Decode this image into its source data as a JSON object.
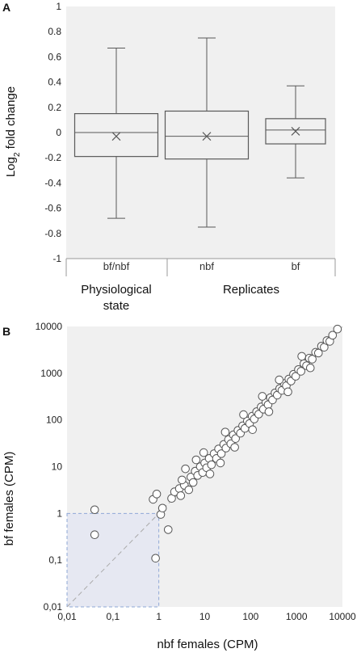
{
  "chart_data": [
    {
      "panel_label": "A",
      "type": "box",
      "ylabel": "Log₂ fold change",
      "ylabel_main": "Log",
      "ylabel_sub": "2",
      "ylabel_rest": " fold change",
      "ylim": [
        -1,
        1
      ],
      "yticks": [
        {
          "value": 1,
          "label": "1"
        },
        {
          "value": 0.8,
          "label": "0.8"
        },
        {
          "value": 0.6,
          "label": "0.6"
        },
        {
          "value": 0.4,
          "label": "0.4"
        },
        {
          "value": 0.2,
          "label": "0.2"
        },
        {
          "value": 0,
          "label": "0"
        },
        {
          "value": -0.2,
          "label": "-0.2"
        },
        {
          "value": -0.4,
          "label": "-0.4"
        },
        {
          "value": -0.6,
          "label": "-0.6"
        },
        {
          "value": -0.8,
          "label": "-0.8"
        },
        {
          "value": -1,
          "label": "-1"
        }
      ],
      "categories": [
        "bf/nbf",
        "nbf",
        "bf"
      ],
      "groups": [
        "Physiological state",
        "Replicates"
      ],
      "boxes": [
        {
          "category": "bf/nbf",
          "whisker_low": -0.68,
          "q1": -0.19,
          "median": 0.0,
          "q3": 0.15,
          "whisker_high": 0.67,
          "mean": -0.03
        },
        {
          "category": "nbf",
          "whisker_low": -0.75,
          "q1": -0.21,
          "median": -0.03,
          "q3": 0.17,
          "whisker_high": 0.75,
          "mean": -0.03
        },
        {
          "category": "bf",
          "whisker_low": -0.36,
          "q1": -0.09,
          "median": 0.02,
          "q3": 0.11,
          "whisker_high": 0.37,
          "mean": 0.01
        }
      ],
      "background_color": "#f0f0f0",
      "box_color": "#595959"
    },
    {
      "panel_label": "B",
      "type": "scatter",
      "xlabel": "nbf females (CPM)",
      "ylabel": "bf females (CPM)",
      "xscale": "log",
      "yscale": "log",
      "xlim": [
        0.01,
        10000
      ],
      "ylim": [
        0.01,
        10000
      ],
      "xticks": [
        {
          "value": 0.01,
          "label": "0,01"
        },
        {
          "value": 0.1,
          "label": "0,1"
        },
        {
          "value": 1,
          "label": "1"
        },
        {
          "value": 10,
          "label": "10"
        },
        {
          "value": 100,
          "label": "100"
        },
        {
          "value": 1000,
          "label": "1000"
        },
        {
          "value": 10000,
          "label": "10000"
        }
      ],
      "yticks": [
        {
          "value": 0.01,
          "label": "0,01"
        },
        {
          "value": 0.1,
          "label": "0,1"
        },
        {
          "value": 1,
          "label": "1"
        },
        {
          "value": 10,
          "label": "10"
        },
        {
          "value": 100,
          "label": "100"
        },
        {
          "value": 1000,
          "label": "1000"
        },
        {
          "value": 10000,
          "label": "10000"
        }
      ],
      "diagonal": true,
      "highlight_region": {
        "x": [
          0.01,
          1
        ],
        "y": [
          0.01,
          1
        ]
      },
      "background_color": "#f0f0f0",
      "highlight_color": "#e6e8f2",
      "dashed_color": "#8fa8d6",
      "points": [
        [
          0.04,
          1.2
        ],
        [
          0.04,
          0.35
        ],
        [
          0.85,
          0.11
        ],
        [
          0.75,
          2.0
        ],
        [
          0.9,
          2.6
        ],
        [
          1.1,
          0.95
        ],
        [
          1.2,
          1.3
        ],
        [
          1.6,
          0.45
        ],
        [
          1.9,
          2.1
        ],
        [
          2.2,
          2.9
        ],
        [
          2.8,
          3.4
        ],
        [
          3.0,
          2.4
        ],
        [
          3.6,
          4.0
        ],
        [
          3.2,
          5.2
        ],
        [
          4.5,
          3.2
        ],
        [
          5.0,
          6.0
        ],
        [
          5.6,
          4.6
        ],
        [
          6.2,
          8.0
        ],
        [
          7.0,
          6.5
        ],
        [
          8.0,
          10.0
        ],
        [
          9.0,
          7.5
        ],
        [
          10.0,
          12.0
        ],
        [
          11.0,
          9.5
        ],
        [
          12.5,
          15.0
        ],
        [
          14.0,
          11.0
        ],
        [
          16.0,
          19.0
        ],
        [
          18.0,
          15.0
        ],
        [
          20.0,
          24.0
        ],
        [
          23.0,
          19.0
        ],
        [
          26.0,
          30.0
        ],
        [
          29.0,
          25.0
        ],
        [
          33.0,
          38.0
        ],
        [
          37.0,
          31.0
        ],
        [
          42.0,
          48.0
        ],
        [
          47.0,
          40.0
        ],
        [
          53.0,
          60.0
        ],
        [
          60.0,
          52.0
        ],
        [
          67.0,
          75.0
        ],
        [
          75.0,
          66.0
        ],
        [
          85.0,
          95.0
        ],
        [
          95.0,
          84.0
        ],
        [
          108.0,
          120.0
        ],
        [
          120.0,
          105.0
        ],
        [
          135.0,
          150.0
        ],
        [
          150.0,
          133.0
        ],
        [
          170.0,
          190.0
        ],
        [
          190.0,
          170.0
        ],
        [
          215.0,
          240.0
        ],
        [
          240.0,
          212.0
        ],
        [
          270.0,
          300.0
        ],
        [
          300.0,
          268.0
        ],
        [
          340.0,
          380.0
        ],
        [
          380.0,
          340.0
        ],
        [
          430.0,
          470.0
        ],
        [
          480.0,
          430.0
        ],
        [
          540.0,
          600.0
        ],
        [
          600.0,
          540.0
        ],
        [
          680.0,
          750.0
        ],
        [
          760.0,
          680.0
        ],
        [
          860.0,
          950.0
        ],
        [
          960.0,
          860.0
        ],
        [
          1100.0,
          1200.0
        ],
        [
          1250.0,
          1100.0
        ],
        [
          1450.0,
          1600.0
        ],
        [
          1650.0,
          1450.0
        ],
        [
          1900.0,
          2100.0
        ],
        [
          2200.0,
          2000.0
        ],
        [
          2600.0,
          2800.0
        ],
        [
          3000.0,
          2700.0
        ],
        [
          3500.0,
          3800.0
        ],
        [
          4000.0,
          3600.0
        ],
        [
          4600.0,
          5000.0
        ],
        [
          5300.0,
          4800.0
        ],
        [
          6100.0,
          6500.0
        ],
        [
          7800.0,
          8800.0
        ],
        [
          3.8,
          9.0
        ],
        [
          6.5,
          14.0
        ],
        [
          9.5,
          20.0
        ],
        [
          13.0,
          7.0
        ],
        [
          22.0,
          12.0
        ],
        [
          28.0,
          55.0
        ],
        [
          45.0,
          26.0
        ],
        [
          70.0,
          130.0
        ],
        [
          110.0,
          62.0
        ],
        [
          180.0,
          320.0
        ],
        [
          250.0,
          150.0
        ],
        [
          420.0,
          720.0
        ],
        [
          650.0,
          400.0
        ],
        [
          1300.0,
          2300.0
        ],
        [
          2000.0,
          1300.0
        ]
      ]
    }
  ]
}
